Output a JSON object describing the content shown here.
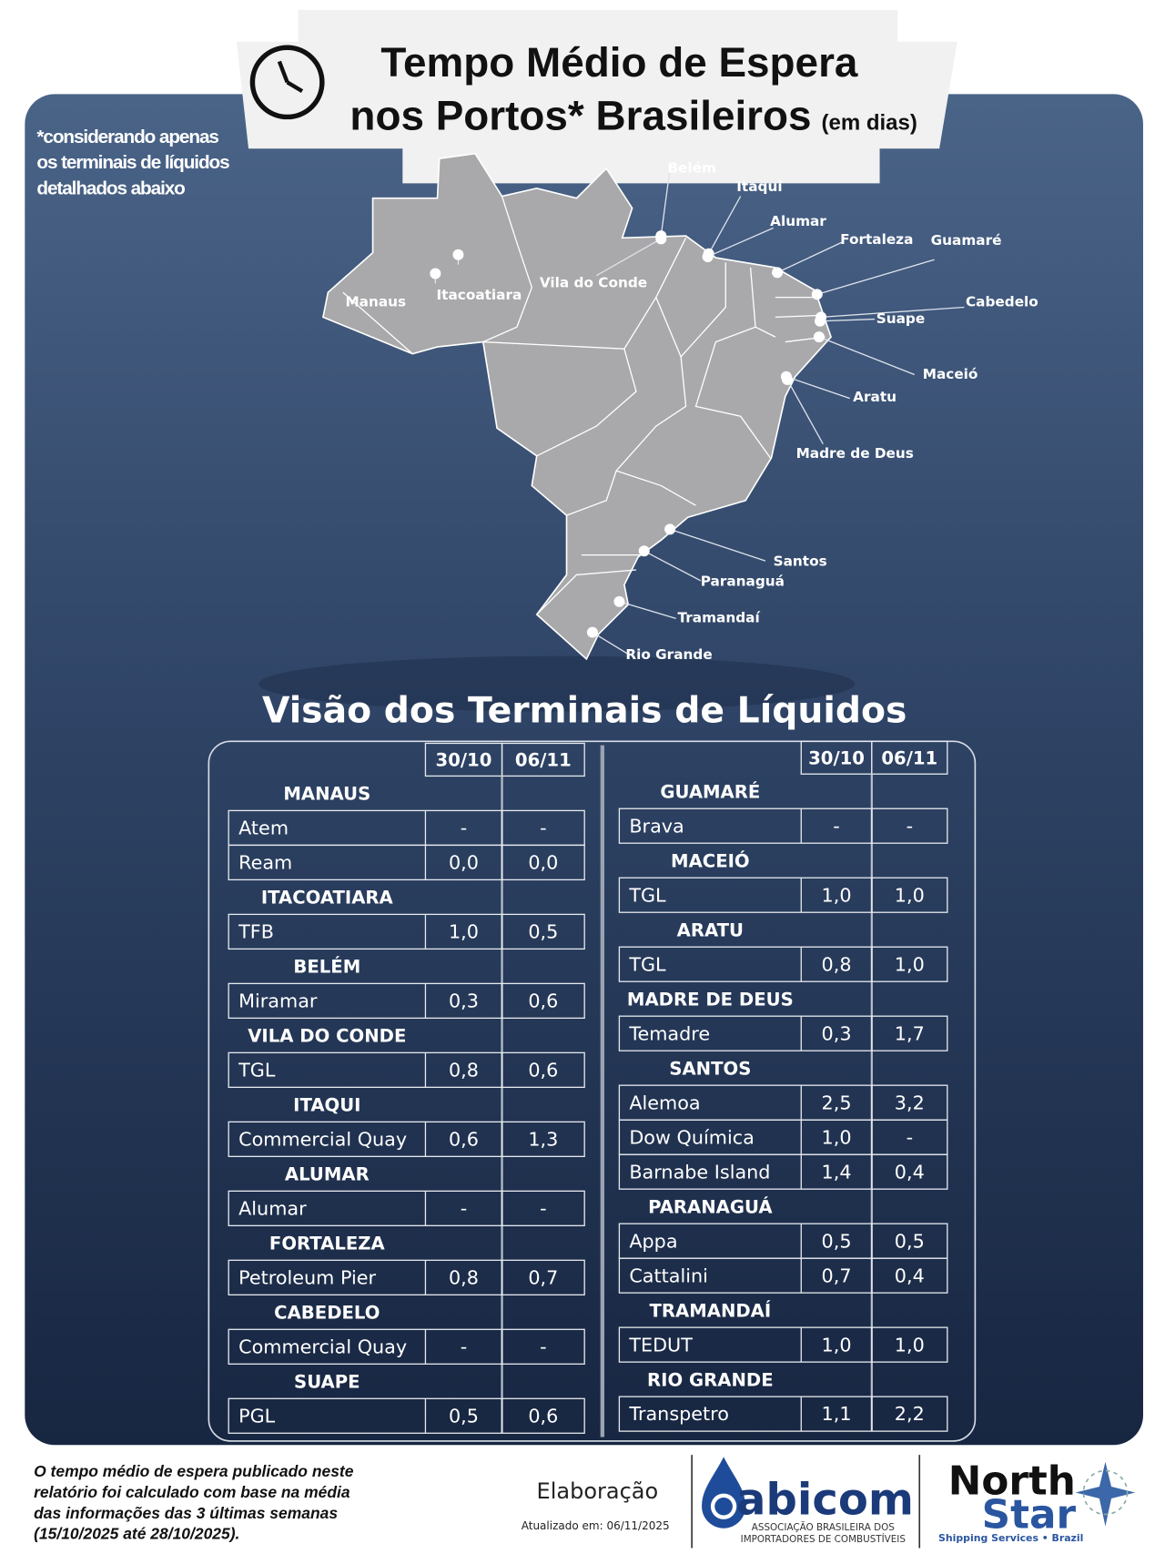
{
  "header": {
    "title_line1": "Tempo Médio de Espera",
    "title_line2": "nos Portos* Brasileiros",
    "unit": "(em dias)"
  },
  "note": [
    "*considerando apenas",
    "os terminais  de líquidos",
    "detalhados abaixo"
  ],
  "map": {
    "ports": [
      "Belém",
      "Itaqui",
      "Alumar",
      "Fortaleza",
      "Guamaré",
      "Cabedelo",
      "Suape",
      "Maceió",
      "Aratu",
      "Madre de Deus",
      "Santos",
      "Paranaguá",
      "Tramandaí",
      "Rio Grande",
      "Manaus",
      "Itacoatiara",
      "Vila do Conde"
    ]
  },
  "table_title": "Visão dos Terminais de Líquidos",
  "tables": [
    {
      "columns": [
        "30/10",
        "06/11"
      ],
      "groups": [
        {
          "port": "MANAUS",
          "rows": [
            [
              "Atem",
              "-",
              "-"
            ],
            [
              "Ream",
              "0,0",
              "0,0"
            ]
          ]
        },
        {
          "port": "ITACOATIARA",
          "rows": [
            [
              "TFB",
              "1,0",
              "0,5"
            ]
          ]
        },
        {
          "port": "BELÉM",
          "rows": [
            [
              "Miramar",
              "0,3",
              "0,6"
            ]
          ]
        },
        {
          "port": "VILA DO CONDE",
          "rows": [
            [
              "TGL",
              "0,8",
              "0,6"
            ]
          ]
        },
        {
          "port": "ITAQUI",
          "rows": [
            [
              "Commercial Quay",
              "0,6",
              "1,3"
            ]
          ]
        },
        {
          "port": "ALUMAR",
          "rows": [
            [
              "Alumar",
              "-",
              "-"
            ]
          ]
        },
        {
          "port": "FORTALEZA",
          "rows": [
            [
              "Petroleum Pier",
              "0,8",
              "0,7"
            ]
          ]
        },
        {
          "port": "CABEDELO",
          "rows": [
            [
              "Commercial Quay",
              "-",
              "-"
            ]
          ]
        },
        {
          "port": "SUAPE",
          "rows": [
            [
              "PGL",
              "0,5",
              "0,6"
            ]
          ]
        }
      ]
    },
    {
      "columns": [
        "30/10",
        "06/11"
      ],
      "groups": [
        {
          "port": "GUAMARÉ",
          "rows": [
            [
              "Brava",
              "-",
              "-"
            ]
          ]
        },
        {
          "port": "MACEIÓ",
          "rows": [
            [
              "TGL",
              "1,0",
              "1,0"
            ]
          ]
        },
        {
          "port": "ARATU",
          "rows": [
            [
              "TGL",
              "0,8",
              "1,0"
            ]
          ]
        },
        {
          "port": "MADRE DE DEUS",
          "rows": [
            [
              "Temadre",
              "0,3",
              "1,7"
            ]
          ]
        },
        {
          "port": "SANTOS",
          "rows": [
            [
              "Alemoa",
              "2,5",
              "3,2"
            ],
            [
              "Dow Química",
              "1,0",
              "-"
            ],
            [
              "Barnabe Island",
              "1,4",
              "0,4"
            ]
          ]
        },
        {
          "port": "PARANAGUÁ",
          "rows": [
            [
              "Appa",
              "0,5",
              "0,5"
            ],
            [
              "Cattalini",
              "0,7",
              "0,4"
            ]
          ]
        },
        {
          "port": "TRAMANDAÍ",
          "rows": [
            [
              "TEDUT",
              "1,0",
              "1,0"
            ]
          ]
        },
        {
          "port": "RIO GRANDE",
          "rows": [
            [
              "Transpetro",
              "1,1",
              "2,2"
            ]
          ]
        }
      ]
    }
  ],
  "footer": {
    "disclaimer": [
      "O tempo médio de espera publicado neste",
      "relatório foi calculado com base na média",
      "das informações das 3 últimas semanas",
      "(15/10/2025 até 28/10/2025)."
    ],
    "credit": "Elaboração",
    "updated": "Atualizado em: 06/11/2025",
    "abicom": "abicom",
    "abicom_sub": [
      "ASSOCIAÇÃO BRASILEIRA DOS",
      "IMPORTADORES DE COMBUSTÍVEIS"
    ],
    "northstar": [
      "North",
      "Star"
    ],
    "northstar_sub": "Shipping Services • Brazil"
  }
}
